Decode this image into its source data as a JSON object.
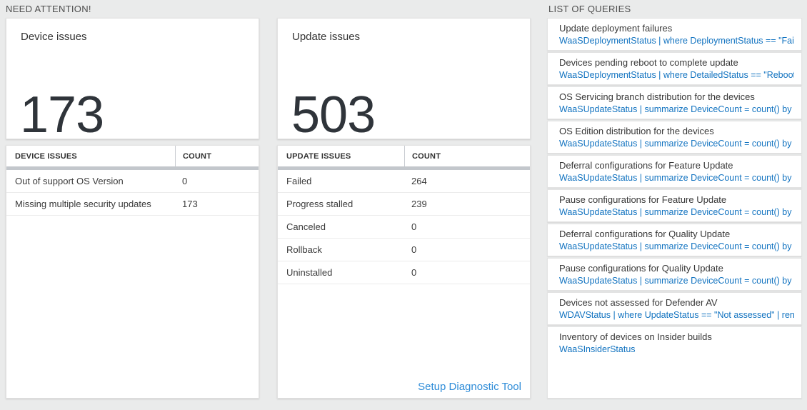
{
  "colors": {
    "query_blue": "#1273c0",
    "link_blue": "#2e8cd8",
    "big_number_color": "#2f343a",
    "header_bar_gray": "#c3c7cc",
    "page_background": "#eaebeb"
  },
  "sections": {
    "need_attention_label": "NEED ATTENTION!",
    "queries_label": "LIST OF QUERIES"
  },
  "device_card": {
    "title": "Device issues",
    "big_number": "173",
    "table": {
      "headers": [
        "DEVICE ISSUES",
        "COUNT"
      ],
      "rows": [
        {
          "label": "Out of support OS Version",
          "count": "0"
        },
        {
          "label": "Missing multiple security updates",
          "count": "173"
        }
      ]
    }
  },
  "update_card": {
    "title": "Update issues",
    "big_number": "503",
    "table": {
      "headers": [
        "UPDATE ISSUES",
        "COUNT"
      ],
      "rows": [
        {
          "label": "Failed",
          "count": "264"
        },
        {
          "label": "Progress stalled",
          "count": "239"
        },
        {
          "label": "Canceled",
          "count": "0"
        },
        {
          "label": "Rollback",
          "count": "0"
        },
        {
          "label": "Uninstalled",
          "count": "0"
        }
      ]
    },
    "setup_link_label": "Setup Diagnostic Tool"
  },
  "queries": [
    {
      "title": "Update deployment failures",
      "query": "WaaSDeploymentStatus | where DeploymentStatus == \"Failed\" |..."
    },
    {
      "title": "Devices pending reboot to complete update",
      "query": "WaaSDeploymentStatus | where DetailedStatus == \"Reboot pend..."
    },
    {
      "title": "OS Servicing branch distribution for the devices",
      "query": "WaaSUpdateStatus | summarize DeviceCount = count() by OSSer..."
    },
    {
      "title": "OS Edition distribution for the devices",
      "query": "WaaSUpdateStatus | summarize DeviceCount = count() by OSEdit..."
    },
    {
      "title": "Deferral configurations for Feature Update",
      "query": "WaaSUpdateStatus | summarize DeviceCount = count() by Featur..."
    },
    {
      "title": "Pause configurations for Feature Update",
      "query": "WaaSUpdateStatus | summarize DeviceCount = count() by Featur..."
    },
    {
      "title": "Deferral configurations for Quality Update",
      "query": "WaaSUpdateStatus | summarize DeviceCount = count() by Qualit..."
    },
    {
      "title": "Pause configurations for Quality Update",
      "query": "WaaSUpdateStatus | summarize DeviceCount = count() by Qualit..."
    },
    {
      "title": "Devices not assessed for Defender AV",
      "query": "WDAVStatus | where UpdateStatus == \"Not assessed\" | render ta..."
    },
    {
      "title": "Inventory of devices on Insider builds",
      "query": "WaaSInsiderStatus"
    }
  ]
}
